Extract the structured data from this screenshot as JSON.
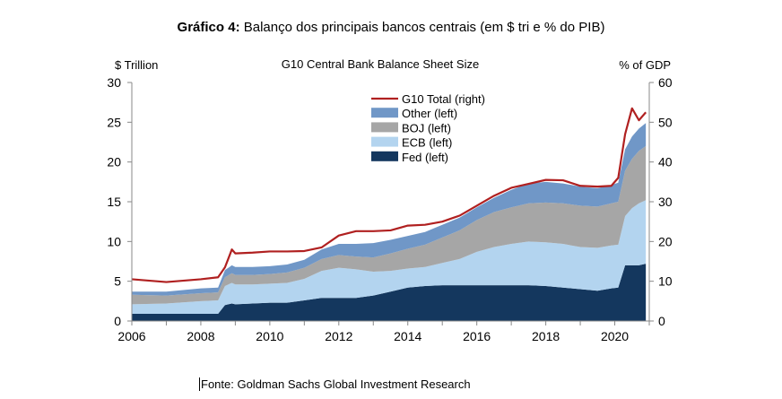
{
  "figure": {
    "title_bold": "Gráfico 4:",
    "title_rest": " Balanço dos principais bancos centrais (em $ tri e % do PIB)",
    "source": "Fonte: Goldman Sachs Global Investment Research"
  },
  "chart_data": {
    "type": "area",
    "title": "G10 Central Bank Balance Sheet Size",
    "ylabel_left": "$ Trillion",
    "ylabel_right": "% of GDP",
    "xlim": [
      2006,
      2021
    ],
    "ylim_left": [
      0,
      30
    ],
    "ylim_right": [
      0,
      60
    ],
    "xticks": [
      2006,
      2008,
      2010,
      2012,
      2014,
      2016,
      2018,
      2020
    ],
    "yticks_left": [
      0,
      5,
      10,
      15,
      20,
      25,
      30
    ],
    "yticks_right": [
      0,
      10,
      20,
      30,
      40,
      50,
      60
    ],
    "colors": {
      "fed": "#14375e",
      "ecb": "#b3d4ef",
      "boj": "#a6a6a6",
      "other": "#7097c7",
      "total": "#b02020"
    },
    "x": [
      2006,
      2007,
      2008,
      2008.5,
      2008.7,
      2008.9,
      2009,
      2009.5,
      2010,
      2010.5,
      2011,
      2011.5,
      2012,
      2012.5,
      2013,
      2013.5,
      2014,
      2014.5,
      2015,
      2015.5,
      2016,
      2016.5,
      2017,
      2017.5,
      2018,
      2018.5,
      2019,
      2019.5,
      2019.9,
      2020.1,
      2020.3,
      2020.5,
      2020.7,
      2020.9
    ],
    "series": [
      {
        "name": "Fed (left)",
        "key": "fed",
        "axis": "left",
        "values": [
          0.9,
          0.9,
          0.9,
          0.9,
          2.0,
          2.2,
          2.1,
          2.2,
          2.3,
          2.3,
          2.6,
          2.9,
          2.9,
          2.9,
          3.2,
          3.7,
          4.2,
          4.4,
          4.5,
          4.5,
          4.5,
          4.5,
          4.5,
          4.5,
          4.4,
          4.2,
          4.0,
          3.8,
          4.1,
          4.2,
          7.0,
          7.0,
          7.0,
          7.2
        ]
      },
      {
        "name": "ECB (left)",
        "key": "ecb",
        "axis": "left",
        "values": [
          1.2,
          1.3,
          1.6,
          1.7,
          2.4,
          2.6,
          2.5,
          2.4,
          2.4,
          2.5,
          2.7,
          3.4,
          3.8,
          3.6,
          3.0,
          2.6,
          2.4,
          2.4,
          2.8,
          3.3,
          4.2,
          4.8,
          5.2,
          5.5,
          5.5,
          5.5,
          5.3,
          5.4,
          5.4,
          5.4,
          6.2,
          7.2,
          7.8,
          8.0
        ]
      },
      {
        "name": "BOJ (left)",
        "key": "boj",
        "axis": "left",
        "values": [
          1.2,
          1.0,
          1.0,
          1.0,
          1.1,
          1.2,
          1.2,
          1.2,
          1.2,
          1.3,
          1.4,
          1.5,
          1.6,
          1.6,
          1.8,
          2.2,
          2.5,
          2.8,
          3.2,
          3.6,
          4.0,
          4.4,
          4.6,
          4.8,
          5.0,
          5.1,
          5.2,
          5.2,
          5.3,
          5.4,
          5.7,
          6.2,
          6.6,
          6.8
        ]
      },
      {
        "name": "Other (left)",
        "key": "other",
        "axis": "left",
        "values": [
          0.4,
          0.5,
          0.6,
          0.6,
          0.9,
          1.0,
          1.0,
          1.0,
          1.0,
          1.0,
          1.0,
          1.2,
          1.4,
          1.6,
          1.8,
          1.7,
          1.6,
          1.6,
          1.6,
          1.6,
          1.6,
          1.8,
          2.2,
          2.5,
          2.6,
          2.5,
          2.4,
          2.3,
          2.3,
          2.4,
          2.7,
          2.8,
          2.8,
          2.9
        ]
      },
      {
        "name": "G10 Total (right)",
        "key": "total",
        "axis": "right",
        "kind": "line",
        "values": [
          10.5,
          9.8,
          10.5,
          11.0,
          13.5,
          18.0,
          17.0,
          17.2,
          17.5,
          17.5,
          17.6,
          18.5,
          21.5,
          22.6,
          22.6,
          22.8,
          24.0,
          24.2,
          25.0,
          26.5,
          29.0,
          31.5,
          33.5,
          34.5,
          35.5,
          35.4,
          34.0,
          33.8,
          34.0,
          36.0,
          47.0,
          53.5,
          50.5,
          52.5
        ]
      }
    ]
  }
}
